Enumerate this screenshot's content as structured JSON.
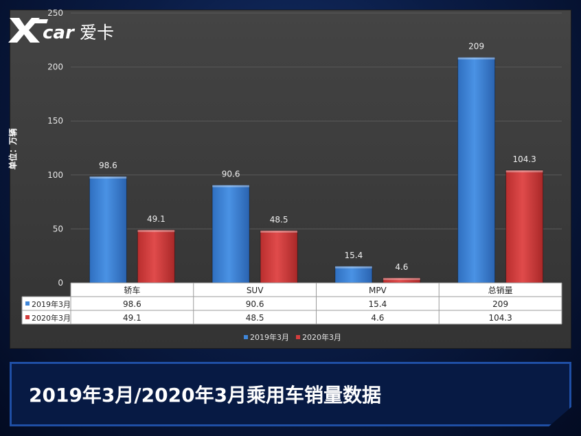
{
  "logo": {
    "brand_text": "爱卡",
    "mark_text": "Xcar"
  },
  "caption": "2019年3月/2020年3月乘用车销量数据",
  "colors": {
    "series_2019": "#3f86d9",
    "series_2020": "#d43d3d"
  },
  "chart_data": {
    "type": "bar",
    "categories": [
      "轿车",
      "SUV",
      "MPV",
      "总销量"
    ],
    "series": [
      {
        "name": "2019年3月",
        "values": [
          98.6,
          90.6,
          15.4,
          209
        ]
      },
      {
        "name": "2020年3月",
        "values": [
          49.1,
          48.5,
          4.6,
          104.3
        ]
      }
    ],
    "data_labels": [
      [
        "98.6",
        "90.6",
        "15.4",
        "209"
      ],
      [
        "49.1",
        "48.5",
        "4.6",
        "104.3"
      ]
    ],
    "ylabel": "单位：万辆",
    "ylim": [
      0,
      250
    ],
    "yticks": [
      0,
      50,
      100,
      150,
      200,
      250
    ],
    "grid": true,
    "legend": "bottom",
    "data_table": true
  }
}
